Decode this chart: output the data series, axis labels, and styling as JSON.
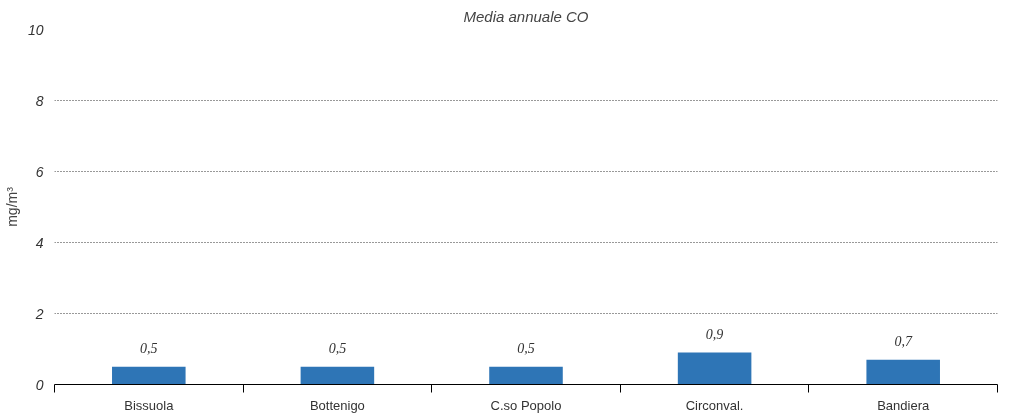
{
  "chart_data": {
    "type": "bar",
    "title": "Media annuale CO",
    "ylabel": "mg/m³",
    "categories": [
      "Bissuola",
      "Bottenigo",
      "C.so Popolo",
      "Circonval.",
      "Bandiera"
    ],
    "values": [
      0.5,
      0.5,
      0.5,
      0.9,
      0.7
    ],
    "value_labels": [
      "0,5",
      "0,5",
      "0,5",
      "0,9",
      "0,7"
    ],
    "color": "#2e75b6",
    "ylim": [
      0,
      10
    ],
    "yticks": [
      0,
      2,
      4,
      6,
      8,
      10
    ],
    "grid": "y"
  }
}
